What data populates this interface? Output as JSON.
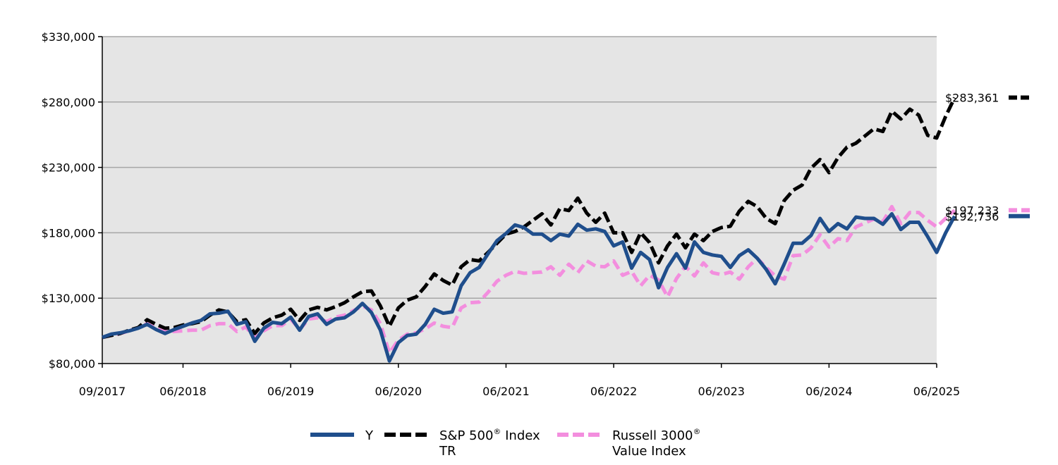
{
  "chart_data": {
    "type": "line",
    "ylim": [
      80000,
      330000
    ],
    "yticks": [
      80000,
      130000,
      180000,
      230000,
      280000,
      330000
    ],
    "ytick_labels": [
      "$80,000",
      "$130,000",
      "$180,000",
      "$230,000",
      "$280,000",
      "$330,000"
    ],
    "xlim": [
      "2017-09",
      "2025-06"
    ],
    "xticks": [
      "2017-09",
      "2018-06",
      "2019-06",
      "2020-06",
      "2021-06",
      "2022-06",
      "2023-06",
      "2024-06",
      "2025-06"
    ],
    "xtick_labels": [
      "09/2017",
      "06/2018",
      "06/2019",
      "06/2020",
      "06/2021",
      "06/2022",
      "06/2023",
      "06/2024",
      "06/2025"
    ],
    "grid": true,
    "legend_position": "bottom",
    "start": "2017-09",
    "series": [
      {
        "name": "Y",
        "label_lines": [
          "Y"
        ],
        "sup": "",
        "color": "#1f4e8c",
        "dash": "solid",
        "end_label": "$192,736",
        "values": [
          100000,
          102500,
          103500,
          105000,
          107000,
          110000,
          106000,
          103000,
          106000,
          108500,
          111000,
          113000,
          118000,
          118500,
          120000,
          110000,
          112000,
          97000,
          107000,
          111500,
          110500,
          115500,
          105500,
          116000,
          118000,
          110000,
          114000,
          115000,
          119500,
          126000,
          119000,
          105500,
          82000,
          96000,
          101500,
          102500,
          110000,
          121500,
          118500,
          119500,
          139500,
          149500,
          153500,
          164000,
          174000,
          179500,
          186000,
          184000,
          179000,
          179000,
          174000,
          179000,
          177500,
          186500,
          182000,
          183000,
          181000,
          170000,
          173000,
          153000,
          165000,
          159500,
          138000,
          153500,
          164000,
          153000,
          173000,
          165000,
          163000,
          162000,
          153500,
          162500,
          167000,
          160500,
          152000,
          141000,
          156000,
          172000,
          172000,
          178000,
          191000,
          181000,
          187000,
          183000,
          192000,
          191000,
          191000,
          186500,
          194500,
          182500,
          188000,
          188000,
          177000,
          165000,
          180000,
          192736
        ]
      },
      {
        "name": "S&P 500® Index TR",
        "label_lines": [
          "S&P 500",
          " Index",
          "TR"
        ],
        "sup": "®",
        "color": "#000000",
        "dash": "longdash",
        "end_label": "$283,361",
        "values": [
          100000,
          101500,
          103000,
          105500,
          107500,
          113500,
          110000,
          107000,
          107500,
          109500,
          110500,
          112000,
          117000,
          121000,
          119500,
          112000,
          113500,
          103000,
          111000,
          115000,
          117000,
          121500,
          113000,
          121000,
          123000,
          121000,
          123500,
          126500,
          131000,
          135000,
          135500,
          124000,
          108500,
          122500,
          128500,
          131000,
          139000,
          148500,
          143500,
          140000,
          154000,
          159500,
          158500,
          165000,
          172000,
          179000,
          181000,
          184500,
          189500,
          194500,
          186000,
          198500,
          197000,
          206500,
          195000,
          188000,
          195000,
          180000,
          180000,
          165000,
          180000,
          172500,
          157000,
          170000,
          179000,
          168500,
          179000,
          174000,
          181000,
          184000,
          185000,
          196500,
          204000,
          200000,
          191000,
          187000,
          204500,
          212500,
          216500,
          229500,
          236000,
          226000,
          237500,
          245500,
          248500,
          254000,
          259500,
          257500,
          273000,
          267000,
          274500,
          270000,
          254500,
          252500,
          269000,
          283361
        ]
      },
      {
        "name": "Russell 3000® Value Index",
        "label_lines": [
          "Russell 3000",
          "",
          "Value Index"
        ],
        "sup": "®",
        "color": "#f38ede",
        "dash": "dash",
        "end_label": "$197,233",
        "values": [
          100000,
          101500,
          103000,
          105000,
          107500,
          110500,
          107000,
          104500,
          104500,
          105000,
          105500,
          105500,
          109000,
          110500,
          110500,
          104500,
          108000,
          99500,
          105000,
          109000,
          109000,
          114000,
          106000,
          114000,
          115000,
          112000,
          115500,
          117000,
          120500,
          124000,
          121000,
          110500,
          88000,
          98000,
          102500,
          103500,
          106500,
          111000,
          108500,
          107500,
          122500,
          126500,
          127000,
          134500,
          143000,
          147500,
          150500,
          149000,
          149500,
          150000,
          154000,
          147500,
          156000,
          149500,
          158500,
          154500,
          154000,
          158500,
          147500,
          150500,
          139500,
          147500,
          144000,
          131000,
          145000,
          154500,
          147000,
          157000,
          149500,
          148000,
          150000,
          144500,
          154000,
          160500,
          153500,
          147000,
          144500,
          162500,
          163000,
          168500,
          178500,
          169000,
          175500,
          174000,
          184500,
          187500,
          190500,
          188500,
          200000,
          187000,
          195500,
          195500,
          189500,
          184500,
          191000,
          197233
        ]
      }
    ]
  }
}
